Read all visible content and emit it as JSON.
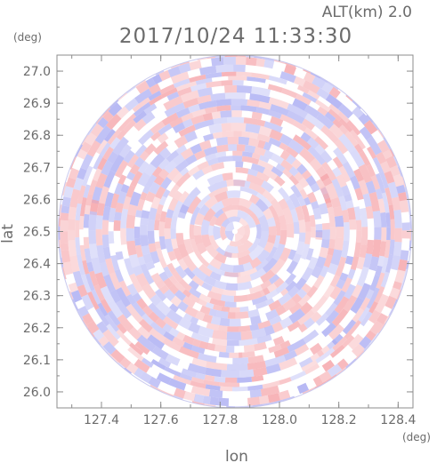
{
  "header": {
    "altitude_label": "ALT(km) 2.0",
    "timestamp": "2017/10/24 11:33:30"
  },
  "chart_data": {
    "type": "heatmap",
    "title": "2017/10/24 11:33:30",
    "xlabel": "lon",
    "ylabel": "lat",
    "x_unit": "(deg)",
    "y_unit": "(deg)",
    "xlim": [
      127.25,
      128.45
    ],
    "ylim": [
      25.95,
      27.05
    ],
    "x_ticks": [
      "127.4",
      "127.6",
      "127.8",
      "128.0",
      "128.2",
      "128.4"
    ],
    "y_ticks": [
      "26.0",
      "26.1",
      "26.2",
      "26.3",
      "26.4",
      "26.5",
      "26.6",
      "26.7",
      "26.8",
      "26.9",
      "27.0"
    ],
    "center": {
      "lon": 127.85,
      "lat": 26.5
    },
    "radius_deg_lat": 0.55,
    "grid": false,
    "colors": {
      "positive": "#f5a3a8",
      "negative": "#a8aaf2",
      "zero": "#ffffff",
      "axis": "#8c8c8c"
    },
    "pattern": "concentric radial rings of alternating red and blue speckle"
  }
}
